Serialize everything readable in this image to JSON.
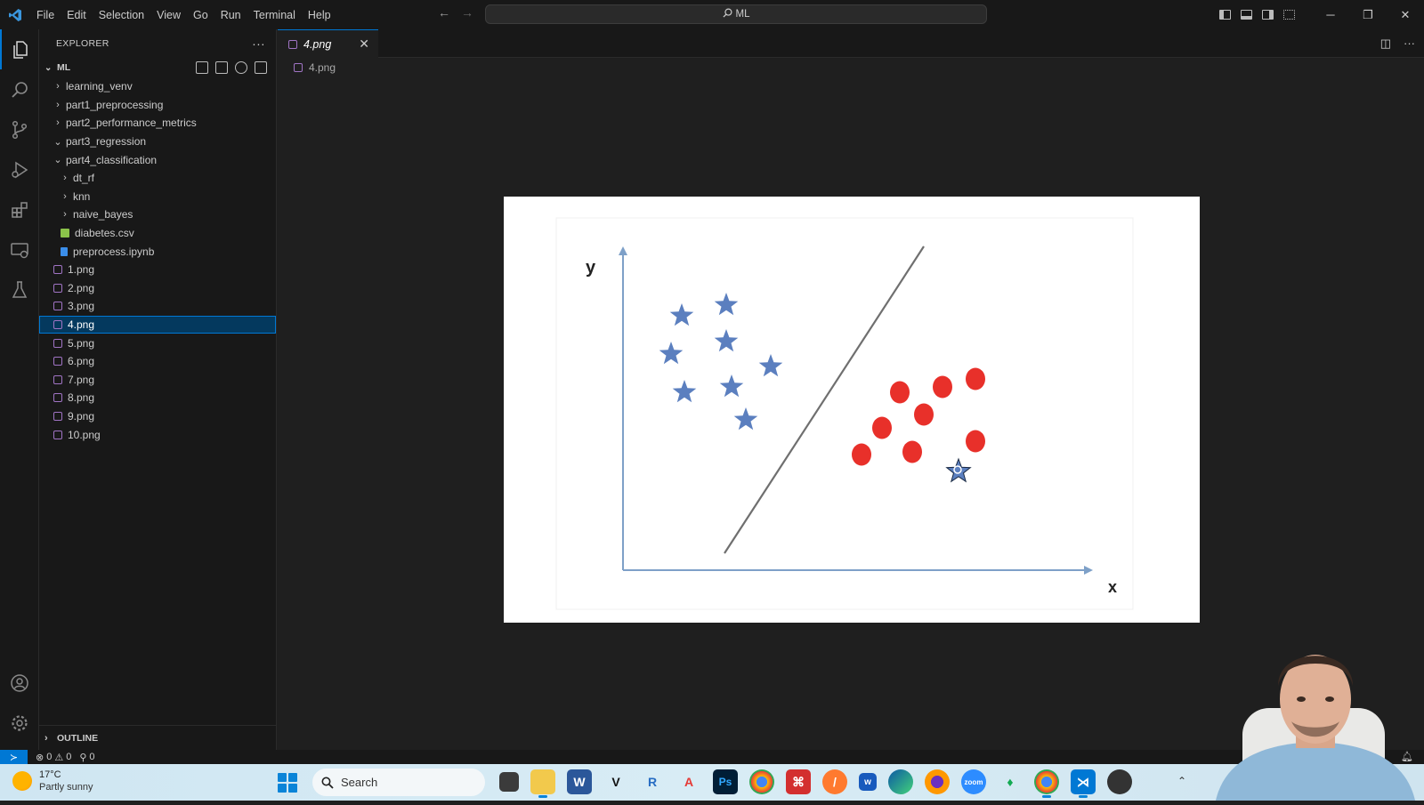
{
  "titlebar": {
    "menu": [
      "File",
      "Edit",
      "Selection",
      "View",
      "Go",
      "Run",
      "Terminal",
      "Help"
    ],
    "search_text": "ML",
    "window_controls": [
      "minimize-icon",
      "restore-icon",
      "close-icon"
    ]
  },
  "activity_bar": {
    "items": [
      "explorer-icon",
      "search-icon",
      "source-control-icon",
      "run-debug-icon",
      "extensions-icon",
      "remote-explorer-icon",
      "testing-icon"
    ],
    "bottom_items": [
      "account-icon",
      "settings-gear-icon"
    ]
  },
  "explorer": {
    "title": "EXPLORER",
    "root": "ML",
    "tree": [
      {
        "label": "learning_venv",
        "type": "folder",
        "expanded": false,
        "depth": 1
      },
      {
        "label": "part1_preprocessing",
        "type": "folder",
        "expanded": false,
        "depth": 1
      },
      {
        "label": "part2_performance_metrics",
        "type": "folder",
        "expanded": false,
        "depth": 1
      },
      {
        "label": "part3_regression",
        "type": "folder",
        "expanded": true,
        "depth": 1
      },
      {
        "label": "part4_classification",
        "type": "folder",
        "expanded": true,
        "depth": 1
      },
      {
        "label": "dt_rf",
        "type": "folder",
        "expanded": false,
        "depth": 2
      },
      {
        "label": "knn",
        "type": "folder",
        "expanded": false,
        "depth": 2
      },
      {
        "label": "naive_bayes",
        "type": "folder",
        "expanded": false,
        "depth": 2
      },
      {
        "label": "diabetes.csv",
        "type": "csv",
        "depth": 2
      },
      {
        "label": "preprocess.ipynb",
        "type": "ipynb",
        "depth": 2
      },
      {
        "label": "1.png",
        "type": "png",
        "depth": 1
      },
      {
        "label": "2.png",
        "type": "png",
        "depth": 1
      },
      {
        "label": "3.png",
        "type": "png",
        "depth": 1
      },
      {
        "label": "4.png",
        "type": "png",
        "depth": 1,
        "selected": true
      },
      {
        "label": "5.png",
        "type": "png",
        "depth": 1
      },
      {
        "label": "6.png",
        "type": "png",
        "depth": 1
      },
      {
        "label": "7.png",
        "type": "png",
        "depth": 1
      },
      {
        "label": "8.png",
        "type": "png",
        "depth": 1
      },
      {
        "label": "9.png",
        "type": "png",
        "depth": 1
      },
      {
        "label": "10.png",
        "type": "png",
        "depth": 1
      }
    ],
    "outline_label": "OUTLINE"
  },
  "editor": {
    "tab_label": "4.png",
    "breadcrumb": "4.png",
    "image": {
      "y_label": "y",
      "x_label": "x",
      "star_color": "#5b7fbf",
      "circle_color": "#e8302a"
    }
  },
  "statusbar": {
    "errors": "0",
    "warnings": "0",
    "ports": "0"
  },
  "taskbar": {
    "temperature": "17°C",
    "condition": "Partly sunny",
    "search_label": "Search"
  }
}
